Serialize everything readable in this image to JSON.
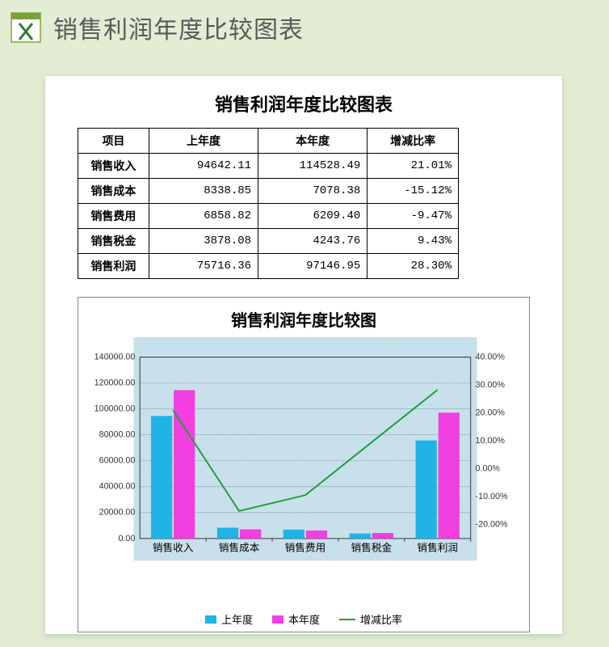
{
  "header": {
    "title": "销售利润年度比较图表",
    "icon_name": "excel-icon"
  },
  "page_bg": "#e2edd4",
  "table": {
    "title": "销售利润年度比较图表",
    "columns": [
      "项目",
      "上年度",
      "本年度",
      "增减比率"
    ],
    "rows": [
      {
        "label": "销售收入",
        "prev": "94642.11",
        "curr": "114528.49",
        "pct": "21.01%"
      },
      {
        "label": "销售成本",
        "prev": "8338.85",
        "curr": "7078.38",
        "pct": "-15.12%"
      },
      {
        "label": "销售费用",
        "prev": "6858.82",
        "curr": "6209.40",
        "pct": "-9.47%"
      },
      {
        "label": "销售税金",
        "prev": "3878.08",
        "curr": "4243.76",
        "pct": "9.43%"
      },
      {
        "label": "销售利润",
        "prev": "75716.36",
        "curr": "97146.95",
        "pct": "28.30%"
      }
    ]
  },
  "chart": {
    "title": "销售利润年度比较图",
    "type": "bar+line-dual-axis",
    "categories": [
      "销售收入",
      "销售成本",
      "销售费用",
      "销售税金",
      "销售利润"
    ],
    "series": {
      "prev": {
        "label": "上年度",
        "color": "#22b3e6",
        "values": [
          94642.11,
          8338.85,
          6858.82,
          3878.08,
          75716.36
        ]
      },
      "curr": {
        "label": "本年度",
        "color": "#f23fe0",
        "values": [
          114528.49,
          7078.38,
          6209.4,
          4243.76,
          97146.95
        ]
      },
      "ratio": {
        "label": "增减比率",
        "color": "#1aa03a",
        "values_pct": [
          21.01,
          -15.12,
          -9.47,
          9.43,
          28.3
        ]
      }
    },
    "y_left": {
      "min": 0,
      "max": 140000,
      "step": 20000,
      "labels": [
        "0.00",
        "20000.00",
        "40000.00",
        "60000.00",
        "80000.00",
        "100000.00",
        "120000.00",
        "140000.00"
      ]
    },
    "y_right": {
      "min": -25,
      "max": 40,
      "step": 10,
      "labels": [
        "-20.00%",
        "-10.00%",
        "0.00%",
        "10.00%",
        "20.00%",
        "30.00%",
        "40.00%"
      ]
    },
    "plot_bg": "#c8e0eb",
    "plot_texture": "noise",
    "grid_color": "#8aa5b0",
    "axis_color": "#333333",
    "bar_width": 0.32,
    "line_width": 2,
    "title_fontsize": 20,
    "tick_fontsize": 11,
    "category_fontsize": 13
  }
}
